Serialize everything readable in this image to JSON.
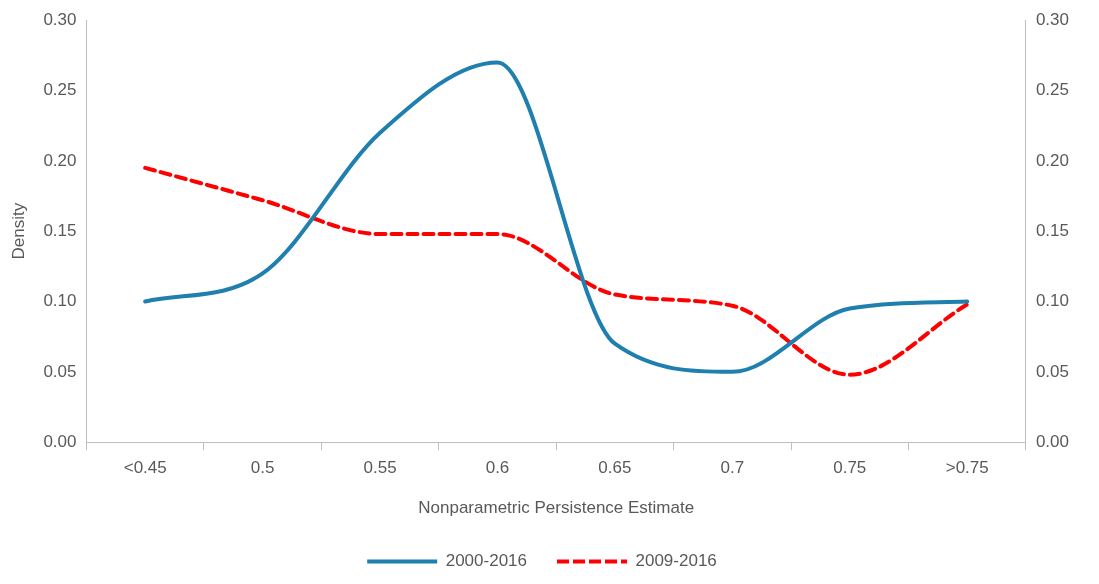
{
  "chart_data": {
    "type": "line",
    "xlabel": "Nonparametric Persistence Estimate",
    "ylabel": "Density",
    "categories": [
      "<0.45",
      "0.5",
      "0.55",
      "0.6",
      "0.65",
      "0.7",
      "0.75",
      ">0.75"
    ],
    "series": [
      {
        "name": "2000-2016",
        "color": "#1f7fae",
        "line_style": "solid",
        "values": [
          0.1,
          0.12,
          0.22,
          0.27,
          0.07,
          0.05,
          0.095,
          0.1
        ]
      },
      {
        "name": "2009-2016",
        "color": "#ff0000",
        "line_style": "dashed",
        "values": [
          0.195,
          0.172,
          0.148,
          0.148,
          0.105,
          0.097,
          0.048,
          0.098
        ]
      }
    ],
    "ylim": [
      0,
      0.3
    ],
    "yticks": [
      {
        "value": 0,
        "label": "0.00"
      },
      {
        "value": 0.05,
        "label": "0.05"
      },
      {
        "value": 0.1,
        "label": "0.10"
      },
      {
        "value": 0.15,
        "label": "0.15"
      },
      {
        "value": 0.2,
        "label": "0.20"
      },
      {
        "value": 0.25,
        "label": "0.25"
      },
      {
        "value": 0.3,
        "label": "0.30"
      }
    ],
    "y2lim": [
      0,
      0.3
    ],
    "y2ticks": [
      {
        "value": 0,
        "label": "0.00"
      },
      {
        "value": 0.05,
        "label": "0.05"
      },
      {
        "value": 0.1,
        "label": "0.10"
      },
      {
        "value": 0.15,
        "label": "0.15"
      },
      {
        "value": 0.2,
        "label": "0.20"
      },
      {
        "value": 0.25,
        "label": "0.25"
      },
      {
        "value": 0.3,
        "label": "0.30"
      }
    ],
    "grid": false,
    "legend": "bottom",
    "marker": "none"
  }
}
